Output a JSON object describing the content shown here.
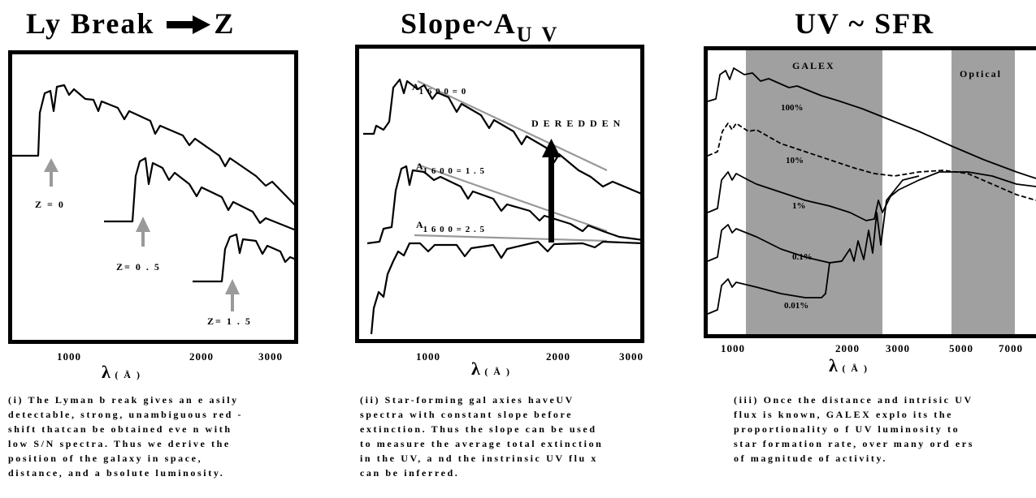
{
  "panels": [
    {
      "title_main": "Ly Break",
      "title_end": "Z",
      "labels": [
        "Z = 0",
        "Z= 0 . 5",
        "Z= 1 . 5"
      ],
      "ticks": [
        "1000",
        "2000",
        "3000"
      ],
      "axis_symbol": "λ",
      "axis_unit": "( Å )",
      "caption": [
        "(i) The Lyman b reak gives an e asily",
        "detectable, strong, unambiguous red -",
        "shift thatcan be obtained eve n with",
        "low S/N spectra. Thus we derive the",
        "position of the galaxy in space,",
        "distance, and a bsolute luminosity."
      ]
    },
    {
      "title_main": "Slope~A",
      "title_sub": "U V",
      "labels": [
        "A",
        "1 6 0 0 = 0",
        "A",
        "1 6 0 0 = 1 . 5",
        "A",
        "1 6 0 0 = 2 . 5"
      ],
      "arrow_label": "DEREDDEN",
      "ticks": [
        "1000",
        "2000",
        "3000"
      ],
      "axis_symbol": "λ",
      "axis_unit": "( Å )",
      "caption": [
        "(ii) Star-forming gal axies haveUV",
        "spectra with constant slope before",
        "extinction. Thus the slope can be used",
        "to measure the average total extinction",
        "in the UV, a nd the instrinsic UV flu x",
        "can be inferred."
      ]
    },
    {
      "title_main": "UV ~ SFR",
      "bands": [
        "GALEX",
        "Optical"
      ],
      "curve_labels": [
        "100%",
        "10%",
        "1%",
        "0.1%",
        "0.01%"
      ],
      "ticks": [
        "1000",
        "2000",
        "3000",
        "5000",
        "7000"
      ],
      "axis_symbol": "λ",
      "axis_unit": "( Å )",
      "caption": [
        "(iii) Once the distance and intrisic UV",
        "flux is known, GALEX explo its the",
        "proportionality o f UV  luminosity to",
        "star formation rate, over many ord ers",
        "of magnitude of activity."
      ]
    }
  ],
  "colors": {
    "ink": "#000000",
    "band": "#a0a0a0",
    "gray_arrow": "#9a9a9a"
  }
}
